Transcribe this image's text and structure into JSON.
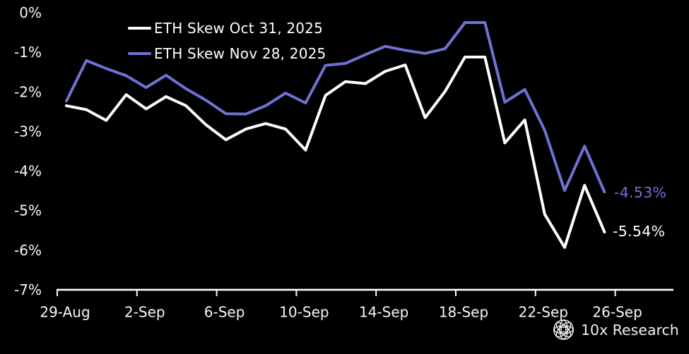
{
  "chart_data": {
    "type": "line",
    "title": "",
    "xlabel": "",
    "ylabel": "",
    "background": "#000000",
    "grid": false,
    "legend_position": "top-left",
    "ylim": [
      -7,
      0
    ],
    "y_tick_labels": [
      "0%",
      "-1%",
      "-2%",
      "-3%",
      "-4%",
      "-5%",
      "-6%",
      "-7%"
    ],
    "x_tick_labels": [
      "29-Aug",
      "2-Sep",
      "6-Sep",
      "10-Sep",
      "14-Sep",
      "18-Sep",
      "22-Sep",
      "26-Sep"
    ],
    "x": [
      "29-Aug",
      "30-Aug",
      "31-Aug",
      "1-Sep",
      "2-Sep",
      "3-Sep",
      "4-Sep",
      "5-Sep",
      "6-Sep",
      "7-Sep",
      "8-Sep",
      "9-Sep",
      "10-Sep",
      "11-Sep",
      "12-Sep",
      "13-Sep",
      "14-Sep",
      "15-Sep",
      "16-Sep",
      "17-Sep",
      "18-Sep",
      "19-Sep",
      "20-Sep",
      "21-Sep",
      "22-Sep",
      "23-Sep",
      "24-Sep",
      "25-Sep"
    ],
    "series": [
      {
        "id": "oct31",
        "name": "ETH Skew Oct 31, 2025",
        "color": "#ffffff",
        "end_label": "-5.54%",
        "values": [
          -2.35,
          -2.45,
          -2.72,
          -2.07,
          -2.43,
          -2.12,
          -2.35,
          -2.83,
          -3.21,
          -2.94,
          -2.8,
          -2.94,
          -3.47,
          -2.09,
          -1.74,
          -1.79,
          -1.48,
          -1.32,
          -2.65,
          -1.99,
          -1.12,
          -1.12,
          -3.29,
          -2.71,
          -5.09,
          -5.93,
          -4.36,
          -5.54
        ]
      },
      {
        "id": "nov28",
        "name": "ETH Skew Nov 28, 2025",
        "color": "#6e72d2",
        "end_label": "-4.53%",
        "values": [
          -2.23,
          -1.21,
          -1.41,
          -1.59,
          -1.89,
          -1.58,
          -1.92,
          -2.21,
          -2.55,
          -2.56,
          -2.35,
          -2.03,
          -2.28,
          -1.33,
          -1.28,
          -1.06,
          -0.85,
          -0.95,
          -1.03,
          -0.91,
          -0.25,
          -0.25,
          -2.26,
          -1.94,
          -2.97,
          -4.49,
          -3.37,
          -4.53
        ]
      }
    ]
  },
  "branding": {
    "logo_text": "10x Research",
    "logo_icon": "lattice-globe-icon"
  }
}
